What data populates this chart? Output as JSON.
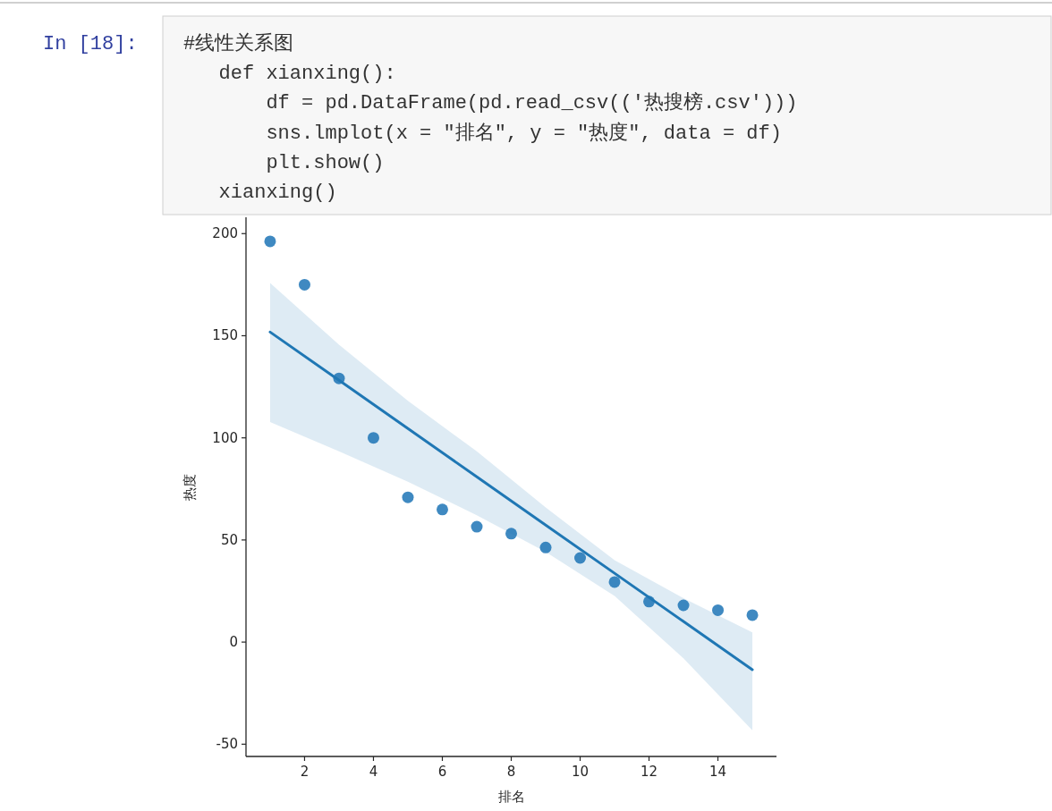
{
  "chart_data": {
    "type": "scatter",
    "xlabel": "排名",
    "ylabel": "热度",
    "annotations": [
      "In [18]:",
      "#线性关系图",
      "   def xianxing():",
      "       df = pd.DataFrame(pd.read_csv(('热搜榜.csv')))",
      "       sns.lmplot(x = \"排名\", y = \"热度\", data = df)",
      "       plt.show()",
      "   xianxing()"
    ],
    "x": [
      1,
      2,
      3,
      4,
      5,
      6,
      7,
      8,
      9,
      10,
      11,
      12,
      13,
      14,
      15
    ],
    "series": [
      {
        "type": "scatter",
        "color": "#3f89c1",
        "marker": "circle",
        "values": [
          196.2,
          175.0,
          129.1,
          100.0,
          70.9,
          64.9,
          56.5,
          53.1,
          46.3,
          41.2,
          29.4,
          19.8,
          18.0,
          15.6,
          13.2
        ]
      },
      {
        "type": "line",
        "color": "#1f77b4",
        "line_style": "solid",
        "x": [
          1,
          3,
          5,
          7,
          9,
          11,
          13,
          15
        ],
        "values": [
          151.8,
          128.2,
          104.6,
          80.9,
          57.3,
          33.7,
          10.1,
          -13.5
        ],
        "upper": [
          175.8,
          145.6,
          118.1,
          93.4,
          65.9,
          40.1,
          21.5,
          4.8
        ],
        "lower": [
          107.7,
          93.4,
          78.5,
          62.1,
          44.2,
          22.6,
          -8.0,
          -43.2
        ]
      }
    ],
    "xlim": [
      0.3,
      15.7
    ],
    "ylim": [
      -56,
      208
    ],
    "xticks": [
      2,
      4,
      6,
      8,
      10,
      12,
      14
    ],
    "yticks": [
      -50,
      0,
      50,
      100,
      150,
      200
    ],
    "grid": false
  }
}
